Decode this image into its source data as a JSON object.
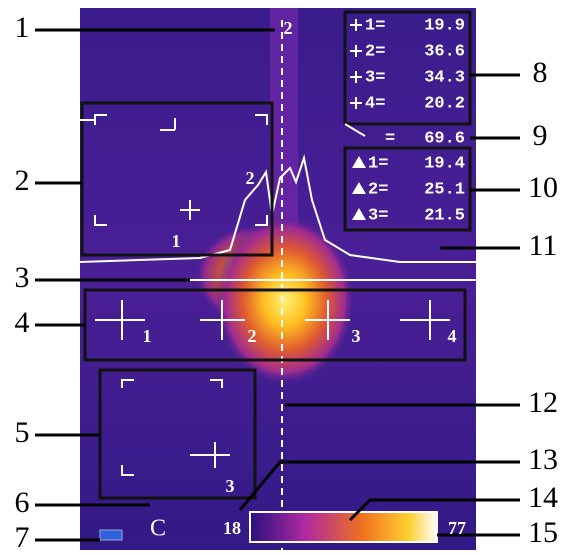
{
  "callouts": [
    "1",
    "2",
    "3",
    "4",
    "5",
    "6",
    "7",
    "8",
    "9",
    "10",
    "11",
    "12",
    "13",
    "14",
    "15"
  ],
  "cursor_label": "2",
  "spot_readings": [
    {
      "label": "1=",
      "value": 19.9
    },
    {
      "label": "2=",
      "value": 36.6
    },
    {
      "label": "3=",
      "value": 34.3
    },
    {
      "label": "4=",
      "value": 20.2
    }
  ],
  "max_reading": {
    "label": "=",
    "value": 69.6
  },
  "area_readings": [
    {
      "label": "1=",
      "value": 19.4
    },
    {
      "label": "2=",
      "value": 25.1
    },
    {
      "label": "3=",
      "value": 21.5
    }
  ],
  "area_labels": [
    "1",
    "2",
    "3"
  ],
  "spot_labels": [
    "1",
    "2",
    "3",
    "4"
  ],
  "unit": "C",
  "scale_min": 18,
  "scale_max": 77
}
